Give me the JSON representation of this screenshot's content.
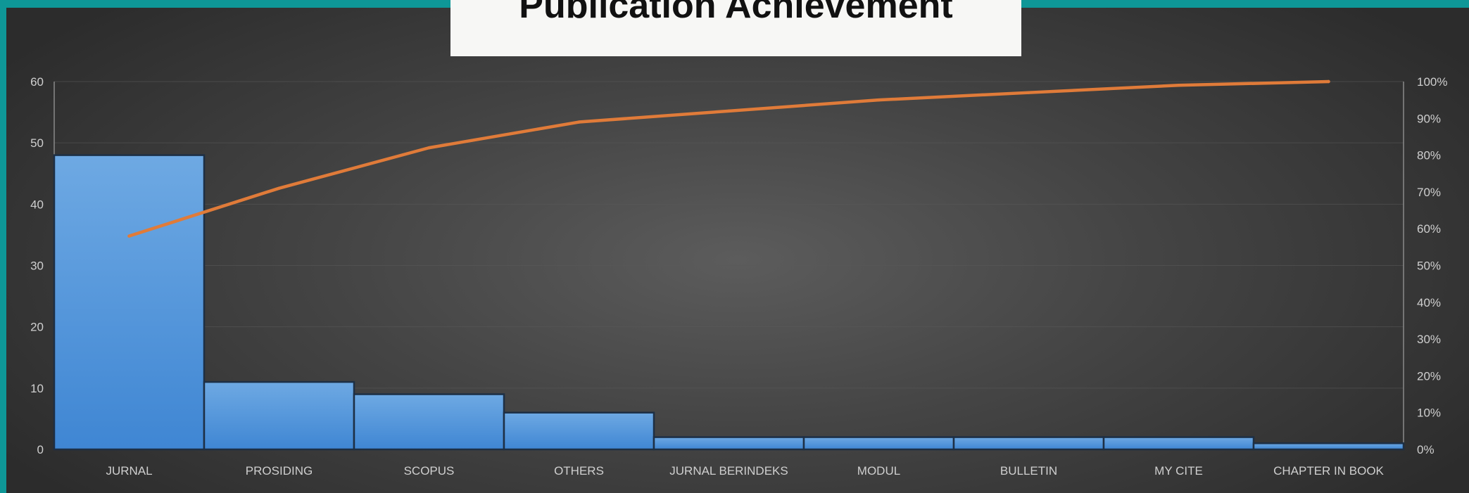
{
  "chart_data": {
    "type": "bar",
    "title": "Publication Achievement",
    "categories": [
      "JURNAL",
      "PROSIDING",
      "SCOPUS",
      "OTHERS",
      "JURNAL BERINDEKS",
      "MODUL",
      "BULLETIN",
      "MY CITE",
      "CHAPTER IN BOOK"
    ],
    "series": [
      {
        "type": "bar",
        "values": [
          48,
          11,
          9,
          6,
          2,
          2,
          2,
          2,
          1
        ]
      },
      {
        "type": "line",
        "axis": "right",
        "values": [
          58,
          71,
          82,
          89,
          92,
          95,
          97,
          99,
          100
        ]
      }
    ],
    "ylim": [
      0,
      60
    ],
    "yticks": [
      "0",
      "10",
      "20",
      "30",
      "40",
      "50",
      "60"
    ],
    "y2lim": [
      0,
      100
    ],
    "y2ticks": [
      "0%",
      "10%",
      "20%",
      "30%",
      "40%",
      "50%",
      "60%",
      "70%",
      "80%",
      "90%",
      "100%"
    ],
    "grid": true,
    "colors": {
      "bar": "#4a8fd8",
      "bar_top": "#6aa6e2",
      "bar_edge": "#1d2f45",
      "line": "#e07b39",
      "grid": "#5a5a5a",
      "text": "#cfcfcf"
    }
  }
}
